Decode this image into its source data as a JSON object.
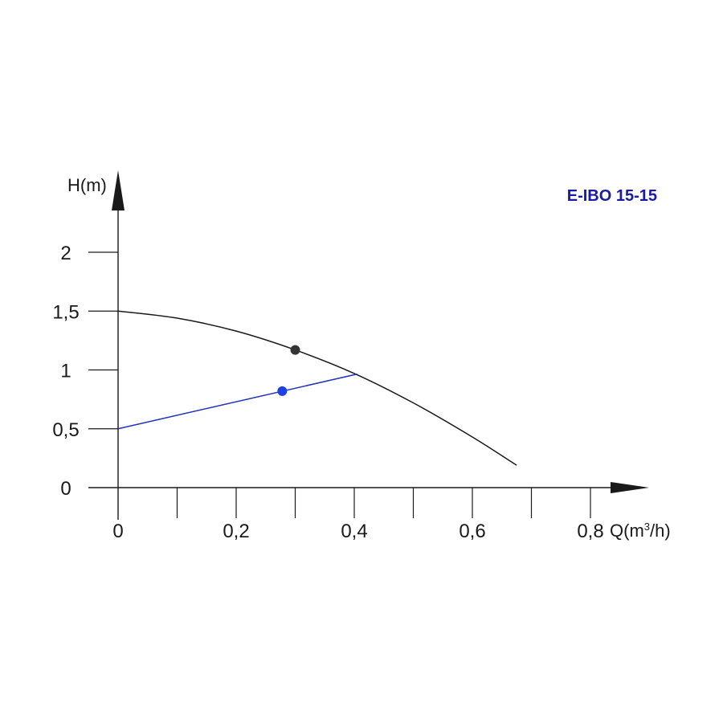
{
  "chart_data": {
    "type": "line",
    "title": "E-IBO 15-15",
    "title_color": "#1a1aa8",
    "xlabel_base": "Q(m",
    "xlabel_sup": "3",
    "xlabel_tail": "/h)",
    "ylabel": "H(m)",
    "xlim": [
      0,
      0.8
    ],
    "ylim": [
      0,
      2
    ],
    "x_ticks": [
      0,
      0.2,
      0.4,
      0.6,
      0.8
    ],
    "x_tick_labels": [
      "0",
      "0,2",
      "0,4",
      "0,6",
      "0,8"
    ],
    "x_minor_ticks": [
      0.1,
      0.3,
      0.5,
      0.7
    ],
    "y_ticks": [
      0,
      0.5,
      1,
      1.5,
      2
    ],
    "y_tick_labels": [
      "0",
      "0,5",
      "1",
      "1,5",
      "2"
    ],
    "grid": false,
    "series": [
      {
        "color": "#1a1a1a",
        "x": [
          0,
          0.1,
          0.2,
          0.3,
          0.4,
          0.5,
          0.6,
          0.675
        ],
        "y": [
          1.5,
          1.44,
          1.33,
          1.17,
          0.97,
          0.72,
          0.43,
          0.19
        ],
        "marker": {
          "x": 0.3,
          "y": 1.17,
          "color": "#333333"
        }
      },
      {
        "color": "#2233bb",
        "x": [
          0,
          0.405
        ],
        "y": [
          0.5,
          0.965
        ],
        "marker": {
          "x": 0.278,
          "y": 0.82,
          "color": "#1f3fe0"
        }
      }
    ]
  }
}
